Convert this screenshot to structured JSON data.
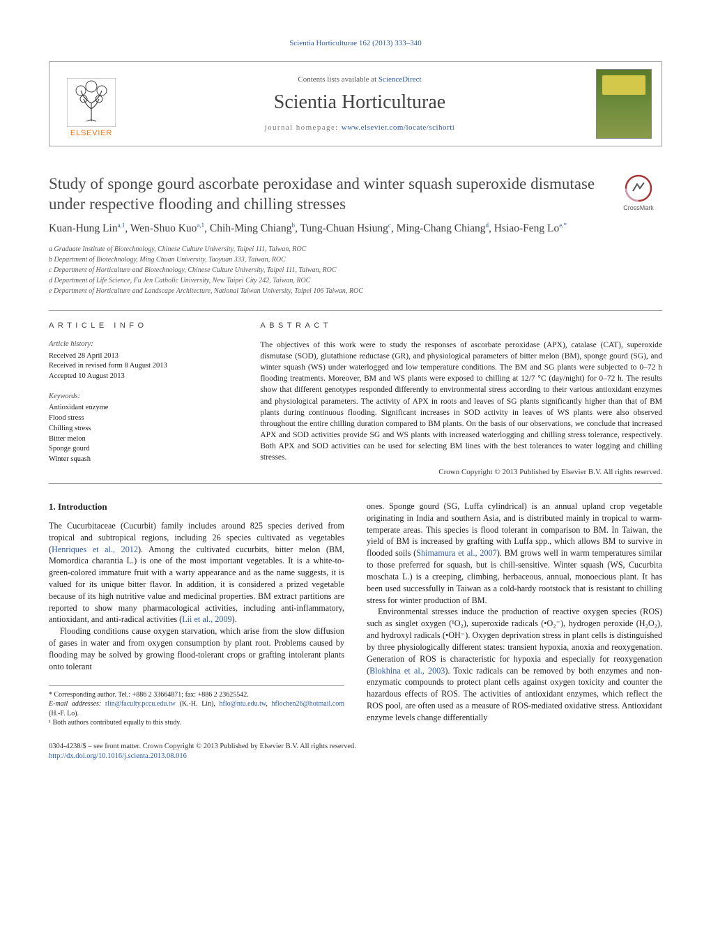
{
  "journal_ref": "Scientia Horticulturae 162 (2013) 333–340",
  "header": {
    "contents_prefix": "Contents lists available at ",
    "contents_link": "ScienceDirect",
    "journal_name": "Scientia Horticulturae",
    "homepage_prefix": "journal homepage: ",
    "homepage_url": "www.elsevier.com/locate/scihorti",
    "elsevier_word": "ELSEVIER"
  },
  "crossmark_label": "CrossMark",
  "title": "Study of sponge gourd ascorbate peroxidase and winter squash superoxide dismutase under respective flooding and chilling stresses",
  "authors_html": "Kuan-Hung Lin<sup>a,1</sup>, Wen-Shuo Kuo<sup>a,1</sup>, Chih-Ming Chiang<sup>b</sup>, Tung-Chuan Hsiung<sup>c</sup>, Ming-Chang Chiang<sup>d</sup>, Hsiao-Feng Lo<sup>e,*</sup>",
  "affiliations": [
    "a Graduate Institute of Biotechnology, Chinese Culture University, Taipei 111, Taiwan, ROC",
    "b Department of Biotechnology, Ming Chuan University, Taoyuan 333, Taiwan, ROC",
    "c Department of Horticulture and Biotechnology, Chinese Culture University, Taipei 111, Taiwan, ROC",
    "d Department of Life Science, Fu Jen Catholic University, New Taipei City 242, Taiwan, ROC",
    "e Department of Horticulture and Landscape Architecture, National Taiwan University, Taipei 106 Taiwan, ROC"
  ],
  "article_info": {
    "heading": "article info",
    "history_label": "Article history:",
    "history": [
      "Received 28 April 2013",
      "Received in revised form 8 August 2013",
      "Accepted 10 August 2013"
    ],
    "keywords_label": "Keywords:",
    "keywords": [
      "Antioxidant enzyme",
      "Flood stress",
      "Chilling stress",
      "Bitter melon",
      "Sponge gourd",
      "Winter squash"
    ]
  },
  "abstract": {
    "heading": "abstract",
    "text": "The objectives of this work were to study the responses of ascorbate peroxidase (APX), catalase (CAT), superoxide dismutase (SOD), glutathione reductase (GR), and physiological parameters of bitter melon (BM), sponge gourd (SG), and winter squash (WS) under waterlogged and low temperature conditions. The BM and SG plants were subjected to 0–72 h flooding treatments. Moreover, BM and WS plants were exposed to chilling at 12/7 °C (day/night) for 0–72 h. The results show that different genotypes responded differently to environmental stress according to their various antioxidant enzymes and physiological parameters. The activity of APX in roots and leaves of SG plants significantly higher than that of BM plants during continuous flooding. Significant increases in SOD activity in leaves of WS plants were also observed throughout the entire chilling duration compared to BM plants. On the basis of our observations, we conclude that increased APX and SOD activities provide SG and WS plants with increased waterlogging and chilling stress tolerance, respectively. Both APX and SOD activities can be used for selecting BM lines with the best tolerances to water logging and chilling stresses.",
    "copyright": "Crown Copyright © 2013 Published by Elsevier B.V. All rights reserved."
  },
  "intro": {
    "heading": "1.  Introduction",
    "p1": "The Cucurbitaceae (Cucurbit) family includes around 825 species derived from tropical and subtropical regions, including 26 species cultivated as vegetables (Henriques et al., 2012). Among the cultivated cucurbits, bitter melon (BM, Momordica charantia L.) is one of the most important vegetables. It is a white-to-green-colored immature fruit with a warty appearance and as the name suggests, it is valued for its unique bitter flavor. In addition, it is considered a prized vegetable because of its high nutritive value and medicinal properties. BM extract partitions are reported to show many pharmacological activities, including anti-inflammatory, antioxidant, and anti-radical activities (Lii et al., 2009).",
    "p2": "Flooding conditions cause oxygen starvation, which arise from the slow diffusion of gases in water and from oxygen consumption by plant root. Problems caused by flooding may be solved by growing flood-tolerant crops or grafting intolerant plants onto tolerant",
    "p3": "ones. Sponge gourd (SG, Luffa cylindrical) is an annual upland crop vegetable originating in India and southern Asia, and is distributed mainly in tropical to warm-temperate areas. This species is flood tolerant in comparison to BM. In Taiwan, the yield of BM is increased by grafting with Luffa spp., which allows BM to survive in flooded soils (Shimamura et al., 2007). BM grows well in warm temperatures similar to those preferred for squash, but is chill-sensitive. Winter squash (WS, Cucurbita moschata L.) is a creeping, climbing, herbaceous, annual, monoecious plant. It has been used successfully in Taiwan as a cold-hardy rootstock that is resistant to chilling stress for winter production of BM.",
    "p4": "Environmental stresses induce the production of reactive oxygen species (ROS) such as singlet oxygen (¹O₂), superoxide radicals (•O₂⁻), hydrogen peroxide (H₂O₂), and hydroxyl radicals (•OH⁻). Oxygen deprivation stress in plant cells is distinguished by three physiologically different states: transient hypoxia, anoxia and reoxygenation. Generation of ROS is characteristic for hypoxia and especially for reoxygenation (Blokhina et al., 2003). Toxic radicals can be removed by both enzymes and non-enzymatic compounds to protect plant cells against oxygen toxicity and counter the hazardous effects of ROS. The activities of antioxidant enzymes, which reflect the ROS pool, are often used as a measure of ROS-mediated oxidative stress. Antioxidant enzyme levels change differentially"
  },
  "footnotes": {
    "corr": "* Corresponding author. Tel.: +886 2 33664871; fax: +886 2 23625542.",
    "email_label": "E-mail addresses: ",
    "email1": "rlin@faculty.pccu.edu.tw",
    "email1_who": " (K.-H. Lin), ",
    "email2": "hflo@ntu.edu.tw",
    "email2_sep": ", ",
    "email3": "hflochen26@hotmail.com",
    "email3_who": " (H.-F. Lo).",
    "equal": "¹ Both authors contributed equally to this study."
  },
  "bottom": {
    "issn": "0304-4238/$ – see front matter. Crown Copyright © 2013 Published by Elsevier B.V. All rights reserved.",
    "doi": "http://dx.doi.org/10.1016/j.scienta.2013.08.016"
  },
  "colors": {
    "link": "#2b5aa8",
    "elsevier_orange": "#ff6b00",
    "text": "#1a1a1a",
    "muted": "#555555",
    "rule": "#999999"
  }
}
